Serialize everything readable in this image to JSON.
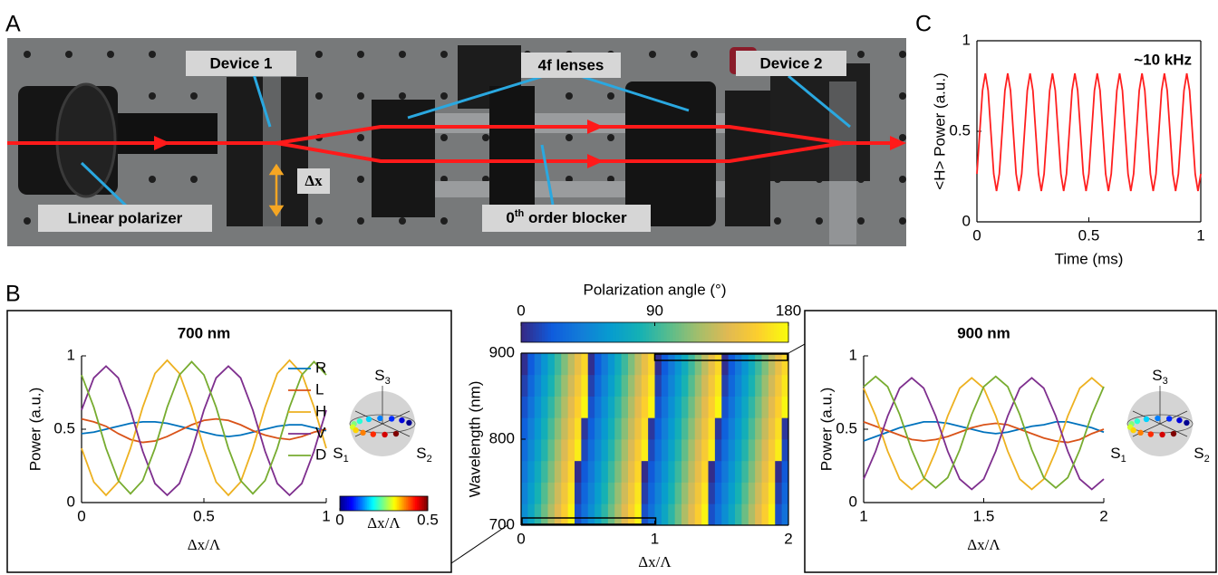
{
  "panel_labels": [
    "A",
    "B",
    "C"
  ],
  "photo_labels": {
    "device1": "Device 1",
    "lenses": "4f lenses",
    "device2": "Device 2",
    "polarizer": "Linear polarizer",
    "blocker": [
      "0",
      "th",
      " order blocker"
    ],
    "shift": "Δx"
  },
  "chart_data": [
    {
      "type": "line",
      "annotation": "~10 kHz",
      "xlabel": "Time (ms)",
      "ylabel": "<H> Power (a.u.)",
      "color": "#ff1f1f",
      "xlim": [
        0,
        1
      ],
      "xticks": [
        0,
        0.5,
        1
      ],
      "ylim": [
        0,
        1
      ],
      "yticks": [
        0,
        0.5,
        1
      ],
      "x": [
        0,
        0.0125,
        0.025,
        0.0375,
        0.05,
        0.0625,
        0.075,
        0.0875,
        0.1,
        0.1125,
        0.125,
        0.1375,
        0.15,
        0.1625,
        0.175,
        0.1875,
        0.2,
        0.2125,
        0.225,
        0.2375,
        0.25,
        0.2625,
        0.275,
        0.2875,
        0.3,
        0.3125,
        0.325,
        0.3375,
        0.35,
        0.3625,
        0.375,
        0.3875,
        0.4,
        0.4125,
        0.425,
        0.4375,
        0.45,
        0.4625,
        0.475,
        0.4875,
        0.5,
        0.5125,
        0.525,
        0.5375,
        0.55,
        0.5625,
        0.575,
        0.5875,
        0.6,
        0.6125,
        0.625,
        0.6375,
        0.65,
        0.6625,
        0.675,
        0.6875,
        0.7,
        0.7125,
        0.725,
        0.7375,
        0.75,
        0.7625,
        0.775,
        0.7875,
        0.8,
        0.8125,
        0.825,
        0.8375,
        0.85,
        0.8625,
        0.875,
        0.8875,
        0.9,
        0.9125,
        0.925,
        0.9375,
        0.95,
        0.9625,
        0.975,
        0.9875,
        1
      ],
      "values": [
        0.265,
        0.495,
        0.725,
        0.82,
        0.725,
        0.495,
        0.265,
        0.17,
        0.265,
        0.495,
        0.725,
        0.82,
        0.725,
        0.495,
        0.265,
        0.17,
        0.265,
        0.495,
        0.725,
        0.82,
        0.725,
        0.495,
        0.265,
        0.17,
        0.265,
        0.495,
        0.725,
        0.82,
        0.725,
        0.495,
        0.265,
        0.17,
        0.265,
        0.495,
        0.725,
        0.82,
        0.725,
        0.495,
        0.265,
        0.17,
        0.265,
        0.495,
        0.725,
        0.82,
        0.725,
        0.495,
        0.265,
        0.17,
        0.265,
        0.495,
        0.725,
        0.82,
        0.725,
        0.495,
        0.265,
        0.17,
        0.265,
        0.495,
        0.725,
        0.82,
        0.725,
        0.495,
        0.265,
        0.17,
        0.265,
        0.495,
        0.725,
        0.82,
        0.725,
        0.495,
        0.265,
        0.17,
        0.265,
        0.495,
        0.725,
        0.82,
        0.725,
        0.495,
        0.265,
        0.17,
        0.265
      ]
    },
    {
      "type": "line",
      "title": "700 nm",
      "xlabel": "Δx/Λ",
      "ylabel": "Power (a.u.)",
      "legend": "upper right",
      "xlim": [
        0,
        1
      ],
      "xticks": [
        0,
        0.5,
        1
      ],
      "ylim": [
        0,
        1
      ],
      "yticks": [
        0,
        0.5,
        1
      ],
      "x": [
        0,
        0.05,
        0.1,
        0.15,
        0.2,
        0.25,
        0.3,
        0.35,
        0.4,
        0.45,
        0.5,
        0.55,
        0.6,
        0.65,
        0.7,
        0.75,
        0.8,
        0.85,
        0.9,
        0.95,
        1
      ],
      "series": [
        {
          "name": "R",
          "color": "#0072bd",
          "values": [
            0.47,
            0.48,
            0.5,
            0.52,
            0.54,
            0.55,
            0.55,
            0.54,
            0.52,
            0.5,
            0.48,
            0.46,
            0.45,
            0.46,
            0.48,
            0.5,
            0.52,
            0.53,
            0.53,
            0.51,
            0.49
          ]
        },
        {
          "name": "L",
          "color": "#d95319",
          "values": [
            0.57,
            0.55,
            0.52,
            0.47,
            0.43,
            0.41,
            0.42,
            0.45,
            0.49,
            0.53,
            0.56,
            0.57,
            0.56,
            0.53,
            0.49,
            0.46,
            0.44,
            0.43,
            0.45,
            0.48,
            0.5
          ]
        },
        {
          "name": "H",
          "color": "#edb120",
          "values": [
            0.37,
            0.14,
            0.05,
            0.14,
            0.37,
            0.65,
            0.88,
            0.97,
            0.88,
            0.65,
            0.37,
            0.14,
            0.05,
            0.14,
            0.37,
            0.65,
            0.88,
            0.97,
            0.88,
            0.65,
            0.37
          ]
        },
        {
          "name": "V",
          "color": "#7e2f8e",
          "values": [
            0.63,
            0.85,
            0.93,
            0.85,
            0.63,
            0.35,
            0.13,
            0.05,
            0.13,
            0.35,
            0.63,
            0.85,
            0.93,
            0.85,
            0.63,
            0.35,
            0.13,
            0.05,
            0.13,
            0.35,
            0.63
          ]
        },
        {
          "name": "D",
          "color": "#77ac30",
          "values": [
            0.87,
            0.65,
            0.37,
            0.15,
            0.06,
            0.15,
            0.37,
            0.65,
            0.87,
            0.96,
            0.87,
            0.65,
            0.37,
            0.15,
            0.06,
            0.15,
            0.37,
            0.65,
            0.87,
            0.96,
            0.87
          ]
        }
      ],
      "inset": {
        "axes": [
          [
            "S",
            "3"
          ],
          [
            "S",
            "1"
          ],
          [
            "S",
            "2"
          ]
        ],
        "clabel": "Δx/Λ",
        "clim": [
          0,
          0.5
        ],
        "cticks": [
          0,
          0.5
        ],
        "colormap": "jet"
      }
    },
    {
      "type": "heatmap",
      "xlabel": "Δx/Λ",
      "ylabel": "Wavelength (nm)",
      "clabel": "Polarization angle (°)",
      "colormap": "parula",
      "xlim": [
        0,
        2
      ],
      "xticks": [
        0,
        1,
        2
      ],
      "ylim": [
        700,
        900
      ],
      "yticks": [
        700,
        800,
        900
      ],
      "clim": [
        0,
        180
      ],
      "cticks": [
        0,
        90,
        180
      ],
      "values": [
        [
          51,
          69,
          87,
          105,
          123,
          141,
          159,
          177,
          15,
          33,
          51,
          69,
          87,
          105,
          123,
          141,
          159,
          177,
          15,
          33,
          51,
          69,
          87,
          105,
          123,
          141,
          159,
          177,
          15,
          33,
          51,
          69,
          87,
          105,
          123,
          141,
          159,
          177,
          15,
          33
        ],
        [
          44,
          62,
          80,
          98,
          116,
          134,
          152,
          170,
          8,
          26,
          44,
          62,
          80,
          98,
          116,
          134,
          152,
          170,
          8,
          26,
          44,
          62,
          80,
          98,
          116,
          134,
          152,
          170,
          8,
          26,
          44,
          62,
          80,
          98,
          116,
          134,
          152,
          170,
          8,
          26
        ],
        [
          37,
          55,
          73,
          91,
          109,
          127,
          145,
          163,
          1,
          19,
          37,
          55,
          73,
          91,
          109,
          127,
          145,
          163,
          1,
          19,
          37,
          55,
          73,
          91,
          109,
          127,
          145,
          163,
          1,
          19,
          37,
          55,
          73,
          91,
          109,
          127,
          145,
          163,
          1,
          19
        ],
        [
          30,
          48,
          66,
          84,
          102,
          120,
          138,
          156,
          174,
          12,
          30,
          48,
          66,
          84,
          102,
          120,
          138,
          156,
          174,
          12,
          30,
          48,
          66,
          84,
          102,
          120,
          138,
          156,
          174,
          12,
          30,
          48,
          66,
          84,
          102,
          120,
          138,
          156,
          174,
          12
        ],
        [
          23,
          41,
          59,
          77,
          95,
          113,
          131,
          149,
          167,
          5,
          23,
          41,
          59,
          77,
          95,
          113,
          131,
          149,
          167,
          5,
          23,
          41,
          59,
          77,
          95,
          113,
          131,
          149,
          167,
          5,
          23,
          41,
          59,
          77,
          95,
          113,
          131,
          149,
          167,
          5
        ],
        [
          16,
          34,
          52,
          70,
          88,
          106,
          124,
          142,
          160,
          178,
          16,
          34,
          52,
          70,
          88,
          106,
          124,
          142,
          160,
          178,
          16,
          34,
          52,
          70,
          88,
          106,
          124,
          142,
          160,
          178,
          16,
          34,
          52,
          70,
          88,
          106,
          124,
          142,
          160,
          178
        ],
        [
          9,
          27,
          45,
          63,
          81,
          99,
          117,
          135,
          153,
          171,
          9,
          27,
          45,
          63,
          81,
          99,
          117,
          135,
          153,
          171,
          9,
          27,
          45,
          63,
          81,
          99,
          117,
          135,
          153,
          171,
          9,
          27,
          45,
          63,
          81,
          99,
          117,
          135,
          153,
          171
        ],
        [
          2,
          20,
          38,
          56,
          74,
          92,
          110,
          128,
          146,
          164,
          2,
          20,
          38,
          56,
          74,
          92,
          110,
          128,
          146,
          164,
          2,
          20,
          38,
          56,
          74,
          92,
          110,
          128,
          146,
          164,
          2,
          20,
          38,
          56,
          74,
          92,
          110,
          128,
          146,
          164
        ]
      ]
    },
    {
      "type": "line",
      "title": "900 nm",
      "xlabel": "Δx/Λ",
      "ylabel": "Power (a.u.)",
      "xlim": [
        1,
        2
      ],
      "xticks": [
        1,
        1.5,
        2
      ],
      "ylim": [
        0,
        1
      ],
      "yticks": [
        0,
        0.5,
        1
      ],
      "x": [
        1,
        1.05,
        1.1,
        1.15,
        1.2,
        1.25,
        1.3,
        1.35,
        1.4,
        1.45,
        1.5,
        1.55,
        1.6,
        1.65,
        1.7,
        1.75,
        1.8,
        1.85,
        1.9,
        1.95,
        2
      ],
      "series": [
        {
          "color": "#0072bd",
          "values": [
            0.42,
            0.45,
            0.48,
            0.51,
            0.53,
            0.55,
            0.55,
            0.54,
            0.52,
            0.5,
            0.48,
            0.47,
            0.48,
            0.5,
            0.52,
            0.53,
            0.55,
            0.55,
            0.53,
            0.51,
            0.48
          ]
        },
        {
          "color": "#d95319",
          "values": [
            0.55,
            0.52,
            0.49,
            0.46,
            0.43,
            0.42,
            0.43,
            0.45,
            0.48,
            0.51,
            0.53,
            0.54,
            0.53,
            0.5,
            0.47,
            0.44,
            0.42,
            0.41,
            0.43,
            0.47,
            0.5
          ]
        },
        {
          "color": "#edb120",
          "values": [
            0.78,
            0.59,
            0.35,
            0.16,
            0.09,
            0.16,
            0.35,
            0.59,
            0.78,
            0.85,
            0.78,
            0.59,
            0.35,
            0.16,
            0.09,
            0.16,
            0.35,
            0.59,
            0.78,
            0.85,
            0.78
          ]
        },
        {
          "color": "#7e2f8e",
          "values": [
            0.16,
            0.35,
            0.59,
            0.78,
            0.85,
            0.78,
            0.59,
            0.35,
            0.16,
            0.09,
            0.16,
            0.35,
            0.59,
            0.78,
            0.85,
            0.78,
            0.59,
            0.35,
            0.16,
            0.09,
            0.16
          ]
        },
        {
          "color": "#77ac30",
          "values": [
            0.79,
            0.86,
            0.79,
            0.6,
            0.36,
            0.17,
            0.1,
            0.17,
            0.36,
            0.6,
            0.79,
            0.86,
            0.79,
            0.6,
            0.36,
            0.17,
            0.1,
            0.17,
            0.36,
            0.6,
            0.79
          ]
        }
      ],
      "inset": {
        "axes": [
          [
            "S",
            "3"
          ],
          [
            "S",
            "1"
          ],
          [
            "S",
            "2"
          ]
        ]
      }
    }
  ]
}
